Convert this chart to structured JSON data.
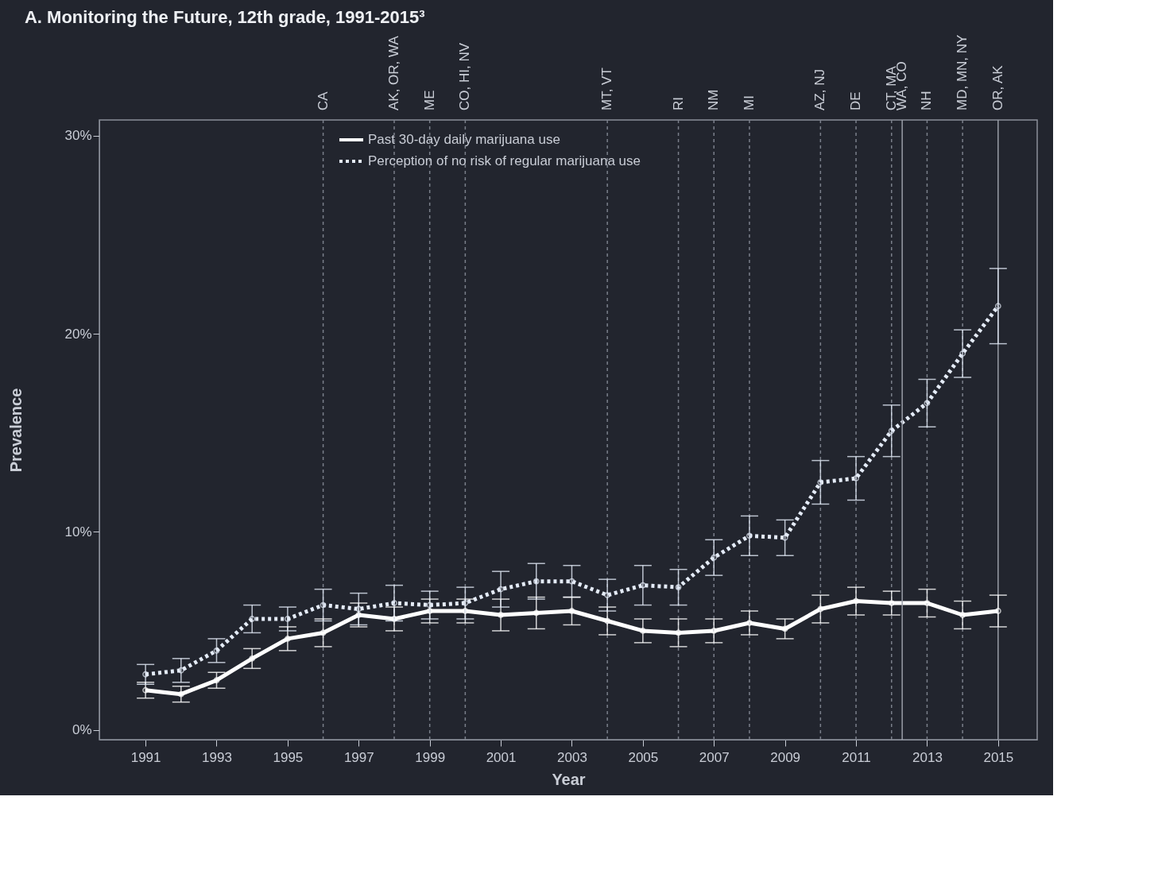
{
  "chart_data": {
    "type": "line",
    "title": "A. Monitoring the Future, 12th grade, 1991-2015³",
    "xlabel": "Year",
    "ylabel": "Prevalence",
    "x": [
      1991,
      1992,
      1993,
      1994,
      1995,
      1996,
      1997,
      1998,
      1999,
      2000,
      2001,
      2002,
      2003,
      2004,
      2005,
      2006,
      2007,
      2008,
      2009,
      2010,
      2011,
      2012,
      2013,
      2014,
      2015
    ],
    "series": [
      {
        "name": "Past 30-day daily marijuana use",
        "color": "#ffffff",
        "line_style": "solid",
        "values": [
          2.0,
          1.8,
          2.5,
          3.6,
          4.6,
          4.9,
          5.8,
          5.6,
          6.0,
          6.0,
          5.8,
          5.9,
          6.0,
          5.5,
          5.0,
          4.9,
          5.0,
          5.4,
          5.1,
          6.1,
          6.5,
          6.4,
          6.4,
          5.8,
          6.0
        ],
        "errors": [
          0.4,
          0.4,
          0.4,
          0.5,
          0.6,
          0.7,
          0.6,
          0.6,
          0.6,
          0.6,
          0.8,
          0.8,
          0.7,
          0.7,
          0.6,
          0.7,
          0.6,
          0.6,
          0.5,
          0.7,
          0.7,
          0.6,
          0.7,
          0.7,
          0.8
        ]
      },
      {
        "name": "Perception of no risk of regular marijuana use",
        "color": "#e4ebf7",
        "line_style": "dotted",
        "values": [
          2.8,
          3.0,
          4.0,
          5.6,
          5.6,
          6.3,
          6.1,
          6.4,
          6.3,
          6.4,
          7.1,
          7.5,
          7.5,
          6.8,
          7.3,
          7.2,
          8.7,
          9.8,
          9.7,
          12.5,
          12.7,
          15.1,
          16.5,
          19.0,
          21.4
        ],
        "errors": [
          0.5,
          0.6,
          0.6,
          0.7,
          0.6,
          0.8,
          0.8,
          0.9,
          0.7,
          0.8,
          0.9,
          0.9,
          0.8,
          0.8,
          1.0,
          0.9,
          0.9,
          1.0,
          0.9,
          1.1,
          1.1,
          1.3,
          1.2,
          1.2,
          1.9
        ]
      }
    ],
    "xlim": [
      1989.7,
      2016.1
    ],
    "xticks": [
      1991,
      1993,
      1995,
      1997,
      1999,
      2001,
      2003,
      2005,
      2007,
      2009,
      2011,
      2013,
      2015
    ],
    "ylim": [
      -0.5,
      30.8
    ],
    "yticks": [
      {
        "value": 0,
        "label": "0%"
      },
      {
        "value": 10,
        "label": "10%"
      },
      {
        "value": 20,
        "label": "20%"
      },
      {
        "value": 30,
        "label": "30%"
      }
    ],
    "ref_lines": [
      {
        "axis": "x",
        "value": 1996,
        "label": "CA",
        "line_style": "dotted",
        "color": "#7a7f8a"
      },
      {
        "axis": "x",
        "value": 1998,
        "label": "AK, OR, WA",
        "line_style": "dotted",
        "color": "#7a7f8a"
      },
      {
        "axis": "x",
        "value": 1999,
        "label": "ME",
        "line_style": "dotted",
        "color": "#7a7f8a"
      },
      {
        "axis": "x",
        "value": 2000,
        "label": "CO, HI, NV",
        "line_style": "dotted",
        "color": "#7a7f8a"
      },
      {
        "axis": "x",
        "value": 2004,
        "label": "MT, VT",
        "line_style": "dotted",
        "color": "#7a7f8a"
      },
      {
        "axis": "x",
        "value": 2006,
        "label": "RI",
        "line_style": "dotted",
        "color": "#7a7f8a"
      },
      {
        "axis": "x",
        "value": 2007,
        "label": "NM",
        "line_style": "dotted",
        "color": "#7a7f8a"
      },
      {
        "axis": "x",
        "value": 2008,
        "label": "MI",
        "line_style": "dotted",
        "color": "#7a7f8a"
      },
      {
        "axis": "x",
        "value": 2010,
        "label": "AZ, NJ",
        "line_style": "dotted",
        "color": "#7a7f8a"
      },
      {
        "axis": "x",
        "value": 2011,
        "label": "DE",
        "line_style": "dotted",
        "color": "#7a7f8a"
      },
      {
        "axis": "x",
        "value": 2012,
        "label": "CT, MA",
        "line_style": "dotted",
        "color": "#7a7f8a"
      },
      {
        "axis": "x",
        "value": 2012.3,
        "label": "WA, CO",
        "line_style": "solid",
        "color": "#9a9ea8"
      },
      {
        "axis": "x",
        "value": 2013,
        "label": "NH",
        "line_style": "dotted",
        "color": "#7a7f8a"
      },
      {
        "axis": "x",
        "value": 2014,
        "label": "MD, MN, NY",
        "line_style": "dotted",
        "color": "#7a7f8a"
      },
      {
        "axis": "x",
        "value": 2015,
        "label": "OR, AK",
        "line_style": "solid",
        "color": "#9a9ea8"
      }
    ],
    "marker": "circle",
    "grid": false,
    "legend": "top"
  }
}
